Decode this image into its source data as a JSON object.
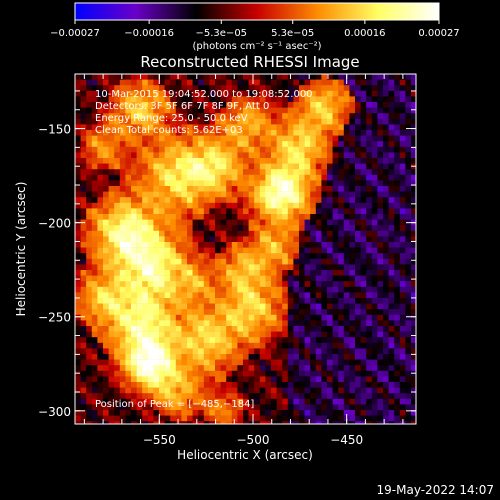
{
  "chart_data": {
    "type": "heatmap",
    "title": "Reconstructed RHESSI Image",
    "xlabel": "Heliocentric X (arcsec)",
    "ylabel": "Heliocentric Y (arcsec)",
    "xlim": [
      -595,
      -413
    ],
    "ylim": [
      -307,
      -121
    ],
    "x_ticks": [
      -550,
      -500,
      -450
    ],
    "x_tick_labels": [
      "−550",
      "−500",
      "−450"
    ],
    "y_ticks": [
      -150,
      -200,
      -250,
      -300
    ],
    "y_tick_labels": [
      "−150",
      "−200",
      "−250",
      "−300"
    ],
    "colorbar": {
      "range": [
        -0.00027,
        0.00027
      ],
      "ticks": [
        -0.00027,
        -0.00016,
        -5.3e-05,
        5.3e-05,
        0.00016,
        0.00027
      ],
      "tick_labels": [
        "−0.00027",
        "−0.00016",
        "−5.3e−05",
        "5.3e−05",
        "0.00016",
        "0.00027"
      ],
      "units": "(photons cm⁻² s⁻¹ asec⁻²)",
      "colors": [
        "#0000ff",
        "#6a00c8",
        "#000000",
        "#c80000",
        "#ff8c00",
        "#ffff64",
        "#ffffff"
      ]
    },
    "annotations": [
      "10-Mar-2015 19:04:52.000 to 19:08:52.000",
      "Detectors: 3F 5F 6F 7F 8F 9F, Att 0",
      "Energy Range: 25.0 - 50.0 keV",
      "Clean     Total counts: 5.62E+03"
    ],
    "peak_label": "Position of Peak = [−485,−184]",
    "peak": [
      -485,
      -184
    ],
    "features": [
      {
        "x": -540,
        "y": -175,
        "sigma": 13,
        "amp": 0.65
      },
      {
        "x": -520,
        "y": -170,
        "sigma": 10,
        "amp": 0.55
      },
      {
        "x": -568,
        "y": -205,
        "sigma": 12,
        "amp": 0.8
      },
      {
        "x": -553,
        "y": -225,
        "sigma": 13,
        "amp": 0.75
      },
      {
        "x": -560,
        "y": -255,
        "sigma": 12,
        "amp": 0.7
      },
      {
        "x": -555,
        "y": -275,
        "sigma": 9,
        "amp": 0.95
      },
      {
        "x": -580,
        "y": -240,
        "sigma": 9,
        "amp": 0.5
      },
      {
        "x": -525,
        "y": -262,
        "sigma": 12,
        "amp": 0.6
      },
      {
        "x": -500,
        "y": -246,
        "sigma": 11,
        "amp": 0.55
      },
      {
        "x": -505,
        "y": -225,
        "sigma": 9,
        "amp": 0.45
      },
      {
        "x": -488,
        "y": -213,
        "sigma": 8,
        "amp": 0.45
      },
      {
        "x": -485,
        "y": -184,
        "sigma": 10,
        "amp": 1.0
      },
      {
        "x": -475,
        "y": -160,
        "sigma": 10,
        "amp": 0.6
      },
      {
        "x": -462,
        "y": -138,
        "sigma": 9,
        "amp": 0.55
      },
      {
        "x": -503,
        "y": -148,
        "sigma": 10,
        "amp": 0.45
      },
      {
        "x": -530,
        "y": -232,
        "sigma": 7,
        "amp": 0.3
      },
      {
        "x": -540,
        "y": -290,
        "sigma": 9,
        "amp": 0.45
      },
      {
        "x": -515,
        "y": -300,
        "sigma": 7,
        "amp": 0.3
      },
      {
        "x": -560,
        "y": -140,
        "sigma": 10,
        "amp": 0.55
      },
      {
        "x": -580,
        "y": -160,
        "sigma": 8,
        "amp": 0.35
      }
    ]
  },
  "footer": {
    "timestamp": "19-May-2022 14:07"
  }
}
